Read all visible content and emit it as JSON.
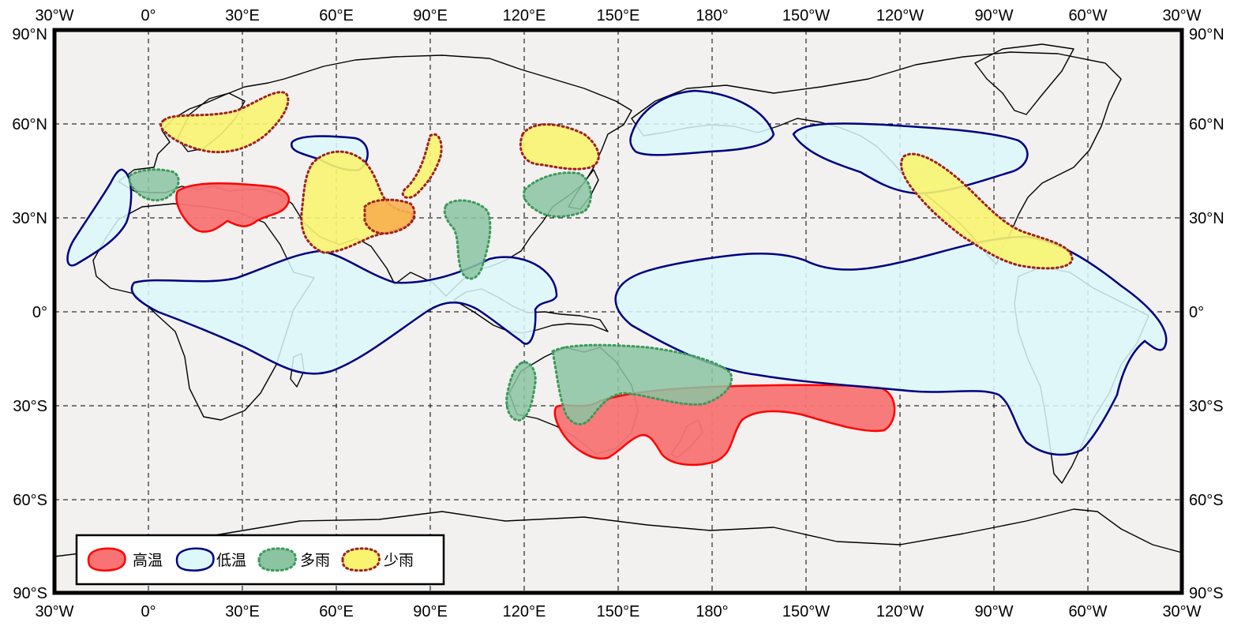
{
  "map": {
    "lon_ticks": [
      "30°W",
      "0°",
      "30°E",
      "60°E",
      "90°E",
      "120°E",
      "150°E",
      "180°",
      "150°W",
      "120°W",
      "90°W",
      "60°W",
      "30°W"
    ],
    "lat_ticks": [
      "90°N",
      "60°N",
      "30°N",
      "0°",
      "30°S",
      "60°S",
      "90°S"
    ],
    "background_color": "#f2f1f0",
    "legend": {
      "items": [
        {
          "label": "高温",
          "fill": "#f87474",
          "stroke": "#ff0000",
          "style": "solid"
        },
        {
          "label": "低温",
          "fill": "#dcf8fa",
          "stroke": "#000080",
          "style": "solid"
        },
        {
          "label": "多雨",
          "fill": "#8cc4a2",
          "stroke": "#3c9a5a",
          "style": "dotted"
        },
        {
          "label": "少雨",
          "fill": "#f8f470",
          "stroke": "#a02020",
          "style": "dotted"
        }
      ]
    }
  }
}
